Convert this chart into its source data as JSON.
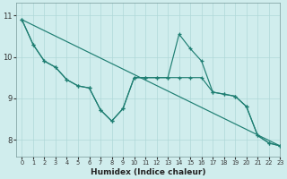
{
  "xlabel": "Humidex (Indice chaleur)",
  "bg_color": "#d0eded",
  "line_color": "#1e7e72",
  "grid_color": "#b0d8d8",
  "xlim": [
    -0.5,
    23
  ],
  "ylim": [
    7.6,
    11.3
  ],
  "yticks": [
    8,
    9,
    10,
    11
  ],
  "xticks": [
    0,
    1,
    2,
    3,
    4,
    5,
    6,
    7,
    8,
    9,
    10,
    11,
    12,
    13,
    14,
    15,
    16,
    17,
    18,
    19,
    20,
    21,
    22,
    23
  ],
  "line1_x": [
    0,
    1,
    2,
    3,
    4,
    5,
    6,
    7,
    8,
    9,
    10,
    11,
    12,
    13,
    14,
    15,
    16,
    17,
    18,
    19,
    20,
    21,
    22,
    23
  ],
  "line1_y": [
    10.9,
    10.3,
    9.9,
    9.75,
    9.45,
    9.3,
    9.25,
    8.72,
    8.45,
    8.75,
    9.5,
    9.5,
    9.5,
    9.5,
    9.5,
    9.5,
    9.5,
    9.15,
    9.1,
    9.05,
    8.8,
    8.1,
    7.92,
    7.85
  ],
  "line2_x": [
    0,
    1,
    2,
    3,
    4,
    5,
    6,
    7,
    8,
    9,
    10,
    11,
    12,
    13,
    14,
    15,
    16,
    17,
    18,
    19,
    20,
    21,
    22,
    23
  ],
  "line2_y": [
    10.9,
    10.3,
    9.9,
    9.75,
    9.45,
    9.3,
    9.25,
    8.72,
    8.45,
    8.75,
    9.5,
    9.5,
    9.5,
    9.5,
    10.55,
    10.2,
    9.9,
    9.15,
    9.1,
    9.05,
    8.8,
    8.1,
    7.92,
    7.85
  ],
  "line3_x": [
    0,
    23
  ],
  "line3_y": [
    10.9,
    7.85
  ]
}
